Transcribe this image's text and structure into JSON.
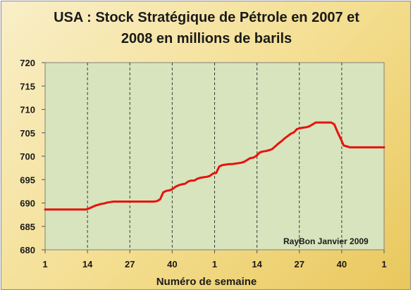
{
  "chart_data": {
    "type": "line",
    "title_line1": "USA : Stock Stratégique de Pétrole en 2007 et",
    "title_line2": "2008 en millions de barils",
    "xlabel": "Numéro de semaine",
    "ylabel": "",
    "annotation": "RayBon Janvier 2009",
    "xtick_labels": [
      "1",
      "14",
      "27",
      "40",
      "1",
      "14",
      "27",
      "40",
      "1"
    ],
    "ylim": [
      680,
      720
    ],
    "yticks": [
      680,
      685,
      690,
      695,
      700,
      705,
      710,
      715,
      720
    ],
    "grid": "vertical dashed",
    "line_color": "#e8120c",
    "plot_bg": "#d7e4bd",
    "series": [
      {
        "values": [
          688.6,
          688.6,
          688.6,
          688.6,
          688.6,
          688.6,
          688.6,
          688.6,
          688.6,
          688.6,
          688.6,
          688.6,
          688.6,
          688.6,
          688.8,
          689.1,
          689.4,
          689.6,
          689.8,
          689.9,
          690.1,
          690.2,
          690.3,
          690.3,
          690.3,
          690.3,
          690.3,
          690.3,
          690.3,
          690.3,
          690.3,
          690.3,
          690.3,
          690.3,
          690.3,
          690.3,
          690.4,
          690.8,
          692.3,
          692.6,
          692.7,
          693.0,
          693.5,
          693.8,
          694.0,
          694.1,
          694.6,
          694.8,
          694.8,
          695.2,
          695.4,
          695.5,
          695.6,
          695.8,
          696.3,
          696.4,
          697.8,
          698.1,
          698.2,
          698.3,
          698.3,
          698.4,
          698.5,
          698.6,
          698.8,
          699.2,
          699.6,
          699.7,
          700.1,
          700.8,
          701.0,
          701.1,
          701.3,
          701.5,
          702.1,
          702.7,
          703.2,
          703.8,
          704.3,
          704.8,
          705.1,
          705.8,
          706.0,
          706.1,
          706.2,
          706.4,
          706.8,
          707.2,
          707.2,
          707.2,
          707.2,
          707.2,
          707.2,
          706.8,
          705.2,
          703.8,
          702.3,
          702.1,
          701.9,
          701.9,
          701.9,
          701.9,
          701.9,
          701.9,
          701.9,
          701.9,
          701.9,
          701.9,
          701.9,
          701.9
        ]
      }
    ]
  }
}
